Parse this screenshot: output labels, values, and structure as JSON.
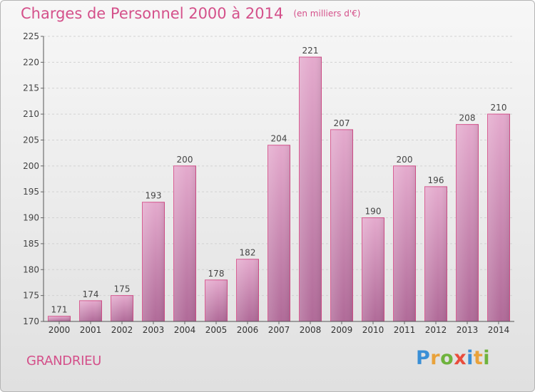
{
  "title": "Charges de Personnel 2000 à 2014",
  "subtitle": "(en milliers d'€)",
  "place": "GRANDRIEU",
  "logo": {
    "letters": [
      "P",
      "r",
      "o",
      "x",
      "i",
      "t",
      "i"
    ],
    "colors": [
      "#3a8fd6",
      "#e9a23b",
      "#6fb33d",
      "#e94d3d",
      "#3a8fd6",
      "#e9a23b",
      "#6fb33d"
    ]
  },
  "colors": {
    "accent": "#d4508a",
    "bar_top": "#e4aacd",
    "bar_bottom": "#b06a98"
  },
  "chart_data": {
    "type": "bar",
    "title": "Charges de Personnel 2000 à 2014",
    "subtitle": "(en milliers d'€)",
    "categories": [
      "2000",
      "2001",
      "2002",
      "2003",
      "2004",
      "2005",
      "2006",
      "2007",
      "2008",
      "2009",
      "2010",
      "2011",
      "2012",
      "2013",
      "2014"
    ],
    "values": [
      171,
      174,
      175,
      193,
      200,
      178,
      182,
      204,
      221,
      207,
      190,
      200,
      196,
      208,
      210
    ],
    "xlabel": "",
    "ylabel": "",
    "ylim": [
      170,
      225
    ],
    "yticks": [
      170,
      175,
      180,
      185,
      190,
      195,
      200,
      205,
      210,
      215,
      220,
      225
    ],
    "grid": true,
    "legend": "none"
  }
}
